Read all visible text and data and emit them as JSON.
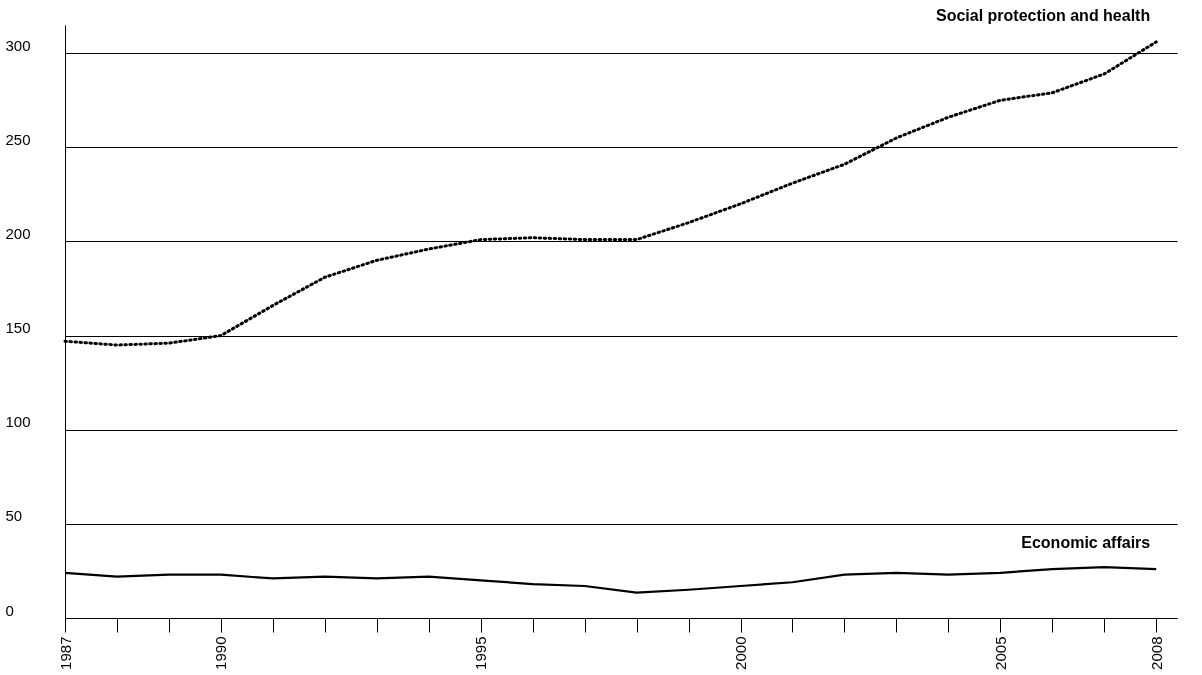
{
  "chart_data": {
    "type": "line",
    "x": [
      1987,
      1988,
      1989,
      1990,
      1991,
      1992,
      1993,
      1994,
      1995,
      1996,
      1997,
      1998,
      1999,
      2000,
      2001,
      2002,
      2003,
      2004,
      2005,
      2006,
      2007,
      2008
    ],
    "series": [
      {
        "name": "Social protection and health",
        "color": "#000000",
        "line_style": "dotted",
        "values": [
          147,
          145,
          146,
          150,
          166,
          181,
          190,
          196,
          201,
          202,
          201,
          201,
          210,
          220,
          231,
          241,
          255,
          266,
          275,
          279,
          289,
          306
        ]
      },
      {
        "name": "Economic affairs",
        "color": "#000000",
        "line_style": "solid",
        "values": [
          24,
          22,
          23,
          23,
          21,
          22,
          21,
          22,
          20,
          18,
          17,
          13.5,
          15,
          17,
          19,
          23,
          24,
          23,
          24,
          26,
          27,
          26
        ]
      }
    ],
    "xlim": [
      1987,
      2008.4
    ],
    "xticks": [
      1987,
      {
        "value": 1988,
        "label": null
      },
      {
        "value": 1989,
        "label": null
      },
      1990,
      {
        "value": 1991,
        "label": null
      },
      {
        "value": 1992,
        "label": null
      },
      {
        "value": 1993,
        "label": null
      },
      {
        "value": 1994,
        "label": null
      },
      1995,
      {
        "value": 1996,
        "label": null
      },
      {
        "value": 1997,
        "label": null
      },
      {
        "value": 1998,
        "label": null
      },
      {
        "value": 1999,
        "label": null
      },
      2000,
      {
        "value": 2001,
        "label": null
      },
      {
        "value": 2002,
        "label": null
      },
      {
        "value": 2003,
        "label": null
      },
      {
        "value": 2004,
        "label": null
      },
      2005,
      {
        "value": 2006,
        "label": null
      },
      {
        "value": 2007,
        "label": null
      },
      2008
    ],
    "ylim": [
      0,
      315
    ],
    "yticks": [
      0,
      50,
      100,
      150,
      200,
      250,
      300
    ],
    "grid": "y",
    "legend": false,
    "marker": "none"
  }
}
